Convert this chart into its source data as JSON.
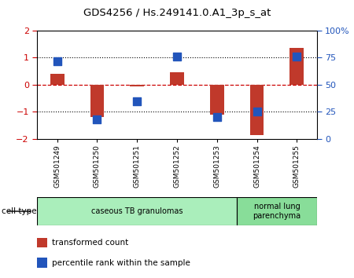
{
  "title": "GDS4256 / Hs.249141.0.A1_3p_s_at",
  "samples": [
    "GSM501249",
    "GSM501250",
    "GSM501251",
    "GSM501252",
    "GSM501253",
    "GSM501254",
    "GSM501255"
  ],
  "transformed_count": [
    0.4,
    -1.2,
    -0.05,
    0.45,
    -1.1,
    -1.85,
    1.35
  ],
  "percentile_rank": [
    72,
    18,
    35,
    76,
    20,
    25,
    76
  ],
  "ylim_left": [
    -2,
    2
  ],
  "ylim_right": [
    0,
    100
  ],
  "yticks_left": [
    -2,
    -1,
    0,
    1,
    2
  ],
  "yticks_right": [
    0,
    25,
    50,
    75,
    100
  ],
  "ytick_labels_right": [
    "0",
    "25",
    "50",
    "75",
    "100%"
  ],
  "bar_color": "#c0392b",
  "dot_color": "#2255bb",
  "hline_color_zero": "#cc0000",
  "hline_color_ref": "#000000",
  "cell_type_groups": [
    {
      "label": "caseous TB granulomas",
      "indices": [
        0,
        4
      ],
      "color": "#aaeebb"
    },
    {
      "label": "normal lung\nparenchyma",
      "indices": [
        5,
        6
      ],
      "color": "#88dd99"
    }
  ],
  "cell_type_label": "cell type",
  "legend_items": [
    {
      "label": "transformed count",
      "color": "#c0392b"
    },
    {
      "label": "percentile rank within the sample",
      "color": "#2255bb"
    }
  ],
  "bar_width": 0.35,
  "dot_size": 60,
  "background_color": "#ffffff",
  "left_tick_color": "#cc0000",
  "right_tick_color": "#2255bb",
  "sample_bg_color": "#cccccc",
  "sample_border_color": "#888888"
}
